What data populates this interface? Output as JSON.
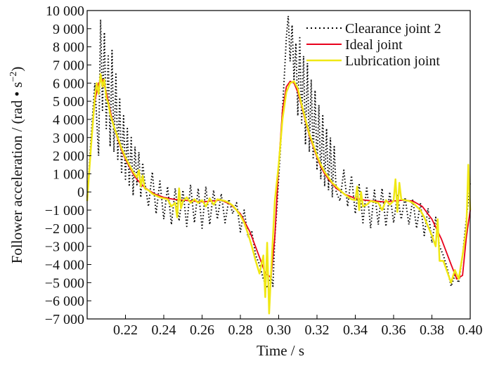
{
  "chart_data": {
    "type": "line",
    "xlabel": "Time / s",
    "ylabel_main": "Follower acceleration / (rad • s",
    "ylabel_sup": "−2",
    "ylabel_close": ")",
    "xlim": [
      0.2,
      0.4
    ],
    "ylim": [
      -7000,
      10000
    ],
    "x_ticks": [
      0.22,
      0.24,
      0.26,
      0.28,
      0.3,
      0.32,
      0.34,
      0.36,
      0.38,
      0.4
    ],
    "x_tick_labels": [
      "0.22",
      "0.24",
      "0.26",
      "0.28",
      "0.30",
      "0.32",
      "0.34",
      "0.36",
      "0.38",
      "0.40"
    ],
    "y_ticks": [
      10000,
      9000,
      8000,
      7000,
      6000,
      5000,
      4000,
      3000,
      2000,
      1000,
      0,
      -1000,
      -2000,
      -3000,
      -4000,
      -5000,
      -6000,
      -7000
    ],
    "y_tick_labels": [
      "10 000",
      "9 000",
      "8 000",
      "7 000",
      "6 000",
      "5 000",
      "4 000",
      "3 000",
      "2 000",
      "1 000",
      "0",
      "−1 000",
      "−2 000",
      "−3 000",
      "−4 000",
      "−5 000",
      "−6 000",
      "−7 000"
    ],
    "legend_position": "top-right",
    "series": [
      {
        "name": "Clearance joint 2",
        "color": "#000000",
        "style": "dotted",
        "x": [
          0.2,
          0.202,
          0.204,
          0.206,
          0.207,
          0.208,
          0.209,
          0.21,
          0.211,
          0.212,
          0.213,
          0.214,
          0.215,
          0.216,
          0.217,
          0.218,
          0.219,
          0.22,
          0.221,
          0.222,
          0.223,
          0.224,
          0.225,
          0.226,
          0.227,
          0.228,
          0.229,
          0.23,
          0.232,
          0.234,
          0.236,
          0.238,
          0.24,
          0.242,
          0.244,
          0.246,
          0.248,
          0.25,
          0.252,
          0.254,
          0.256,
          0.258,
          0.26,
          0.262,
          0.264,
          0.266,
          0.268,
          0.27,
          0.272,
          0.274,
          0.276,
          0.278,
          0.28,
          0.282,
          0.284,
          0.286,
          0.288,
          0.29,
          0.292,
          0.294,
          0.296,
          0.297,
          0.298,
          0.299,
          0.3,
          0.301,
          0.302,
          0.303,
          0.304,
          0.305,
          0.306,
          0.307,
          0.308,
          0.309,
          0.31,
          0.311,
          0.312,
          0.313,
          0.314,
          0.315,
          0.316,
          0.317,
          0.318,
          0.319,
          0.32,
          0.321,
          0.322,
          0.323,
          0.324,
          0.325,
          0.326,
          0.327,
          0.328,
          0.329,
          0.33,
          0.332,
          0.334,
          0.336,
          0.338,
          0.34,
          0.342,
          0.344,
          0.346,
          0.348,
          0.35,
          0.352,
          0.354,
          0.356,
          0.358,
          0.36,
          0.362,
          0.364,
          0.366,
          0.368,
          0.37,
          0.372,
          0.374,
          0.376,
          0.378,
          0.38,
          0.382,
          0.384,
          0.386,
          0.388,
          0.39,
          0.392,
          0.394,
          0.396,
          0.398,
          0.4
        ],
        "y": [
          -500,
          3000,
          6000,
          2000,
          9500,
          4500,
          8800,
          3500,
          7500,
          2500,
          7800,
          2200,
          6500,
          1800,
          5200,
          1000,
          4200,
          700,
          3500,
          300,
          3000,
          -200,
          2500,
          400,
          2200,
          -300,
          1600,
          600,
          -800,
          1100,
          -1200,
          600,
          -1500,
          300,
          -1800,
          200,
          -1600,
          100,
          -1900,
          400,
          -1700,
          200,
          -2000,
          300,
          -1800,
          100,
          -1500,
          -100,
          -1700,
          -400,
          -1200,
          -600,
          -2200,
          -1000,
          -2500,
          -2200,
          -3500,
          -4000,
          -4800,
          -5300,
          -4600,
          -5200,
          -2500,
          -1000,
          800,
          2500,
          4500,
          6500,
          8500,
          9700,
          7200,
          9200,
          6200,
          8200,
          4200,
          8500,
          3800,
          7500,
          2600,
          7100,
          2200,
          6200,
          1800,
          5600,
          1200,
          4800,
          700,
          4200,
          300,
          3500,
          100,
          3000,
          -300,
          2500,
          0,
          -500,
          1200,
          -800,
          900,
          -1200,
          400,
          -1700,
          300,
          -2000,
          100,
          -1800,
          200,
          -1900,
          0,
          -1700,
          -200,
          -1500,
          -300,
          -1800,
          -400,
          -2000,
          -600,
          -2400,
          -900,
          -2800,
          -1400,
          -3000,
          -3500,
          -4200,
          -5200,
          -4600,
          -5000,
          -3500,
          -1500,
          500
        ]
      },
      {
        "name": "Ideal joint",
        "color": "#e8001c",
        "style": "solid",
        "x": [
          0.2,
          0.202,
          0.204,
          0.206,
          0.208,
          0.21,
          0.212,
          0.214,
          0.216,
          0.218,
          0.22,
          0.222,
          0.224,
          0.226,
          0.228,
          0.23,
          0.235,
          0.24,
          0.245,
          0.25,
          0.255,
          0.26,
          0.265,
          0.27,
          0.275,
          0.28,
          0.285,
          0.29,
          0.293,
          0.296,
          0.298,
          0.3,
          0.302,
          0.304,
          0.306,
          0.308,
          0.31,
          0.312,
          0.314,
          0.316,
          0.318,
          0.32,
          0.322,
          0.324,
          0.326,
          0.328,
          0.33,
          0.335,
          0.34,
          0.345,
          0.35,
          0.355,
          0.36,
          0.365,
          0.37,
          0.375,
          0.38,
          0.385,
          0.39,
          0.393,
          0.396,
          0.398,
          0.4
        ],
        "y": [
          -300,
          2500,
          5000,
          6000,
          6200,
          5500,
          4500,
          3600,
          2900,
          2300,
          1800,
          1400,
          1000,
          700,
          450,
          250,
          -100,
          -300,
          -400,
          -450,
          -500,
          -550,
          -500,
          -450,
          -700,
          -1200,
          -2200,
          -3600,
          -4500,
          -4700,
          -2500,
          1500,
          4500,
          5800,
          6100,
          6000,
          5500,
          4700,
          3900,
          3100,
          2500,
          1900,
          1400,
          1000,
          700,
          450,
          200,
          -150,
          -350,
          -450,
          -500,
          -550,
          -500,
          -450,
          -500,
          -800,
          -1500,
          -2600,
          -4000,
          -4800,
          -4600,
          -2500,
          -1000
        ]
      },
      {
        "name": "Lubrication joint",
        "color": "#f0e814",
        "style": "solid",
        "x": [
          0.2,
          0.202,
          0.204,
          0.205,
          0.206,
          0.207,
          0.208,
          0.209,
          0.21,
          0.211,
          0.212,
          0.214,
          0.216,
          0.218,
          0.22,
          0.222,
          0.224,
          0.226,
          0.227,
          0.228,
          0.229,
          0.23,
          0.232,
          0.234,
          0.236,
          0.238,
          0.24,
          0.242,
          0.244,
          0.246,
          0.247,
          0.248,
          0.249,
          0.25,
          0.252,
          0.254,
          0.256,
          0.258,
          0.26,
          0.262,
          0.264,
          0.266,
          0.268,
          0.27,
          0.272,
          0.274,
          0.276,
          0.278,
          0.28,
          0.282,
          0.284,
          0.286,
          0.288,
          0.29,
          0.292,
          0.293,
          0.294,
          0.295,
          0.296,
          0.297,
          0.298,
          0.3,
          0.302,
          0.304,
          0.306,
          0.308,
          0.31,
          0.312,
          0.314,
          0.316,
          0.318,
          0.32,
          0.322,
          0.324,
          0.326,
          0.328,
          0.33,
          0.332,
          0.334,
          0.336,
          0.338,
          0.34,
          0.341,
          0.342,
          0.343,
          0.344,
          0.346,
          0.348,
          0.35,
          0.352,
          0.354,
          0.356,
          0.358,
          0.36,
          0.361,
          0.362,
          0.363,
          0.364,
          0.366,
          0.368,
          0.37,
          0.372,
          0.374,
          0.376,
          0.378,
          0.38,
          0.382,
          0.383,
          0.384,
          0.386,
          0.388,
          0.39,
          0.392,
          0.394,
          0.396,
          0.398,
          0.399,
          0.4
        ],
        "y": [
          -500,
          2500,
          5200,
          6000,
          5400,
          6500,
          5800,
          6200,
          5200,
          4900,
          4300,
          3600,
          3000,
          2400,
          1900,
          1500,
          1100,
          800,
          1200,
          300,
          900,
          200,
          100,
          -100,
          -200,
          -300,
          -350,
          -400,
          -800,
          -600,
          -1400,
          200,
          -900,
          -500,
          -300,
          -600,
          -400,
          -600,
          -450,
          -800,
          -350,
          -700,
          -400,
          -450,
          -500,
          -600,
          -750,
          -1000,
          -1300,
          -1700,
          -2300,
          -3000,
          -3800,
          -4500,
          -3500,
          -5800,
          -2800,
          -6700,
          -4500,
          -2500,
          -500,
          1500,
          4000,
          5500,
          6000,
          6100,
          5700,
          4800,
          4000,
          3200,
          2600,
          2000,
          1500,
          1100,
          800,
          500,
          300,
          100,
          -100,
          -250,
          -400,
          -450,
          300,
          -1000,
          0,
          -800,
          -700,
          -500,
          -550,
          -600,
          -1000,
          -450,
          -700,
          -500,
          700,
          -1100,
          500,
          -400,
          -450,
          -500,
          -600,
          -800,
          -1000,
          -1400,
          -1900,
          -2400,
          -3000,
          -1500,
          -3800,
          -3800,
          -4400,
          -5000,
          -4300,
          -4800,
          -3500,
          -2000,
          1500,
          -1000
        ]
      }
    ]
  }
}
